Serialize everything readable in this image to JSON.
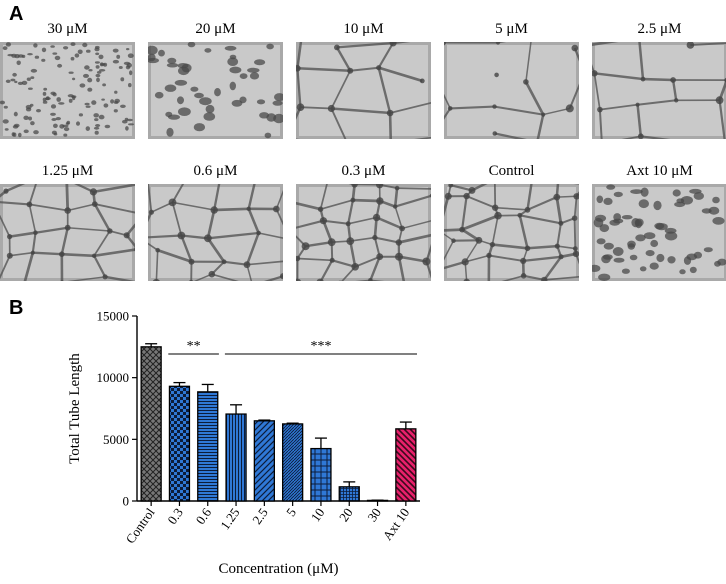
{
  "panels": {
    "a_label": "A",
    "b_label": "B"
  },
  "micrographs": [
    {
      "caption": "30 μM",
      "density": "dense-small-fragments"
    },
    {
      "caption": "20 μM",
      "density": "small-fragments"
    },
    {
      "caption": "10 μM",
      "density": "partial-network"
    },
    {
      "caption": "5 μM",
      "density": "partial-network"
    },
    {
      "caption": "2.5 μM",
      "density": "loose-network"
    },
    {
      "caption": "1.25 μM",
      "density": "network"
    },
    {
      "caption": "0.6 μM",
      "density": "network"
    },
    {
      "caption": "0.3 μM",
      "density": "dense-network"
    },
    {
      "caption": "Control",
      "density": "dense-network"
    },
    {
      "caption": "Axt 10 μM",
      "density": "fragments"
    }
  ],
  "colors": {
    "control_bar": "#777777",
    "treatment_bar": "#2f78d6",
    "axt_bar": "#e8206a",
    "tile_bg": "#c9c9c9",
    "tile_line": "#555555"
  },
  "chart_data": {
    "type": "bar",
    "xlabel": "Concentration (μM)",
    "ylabel": "Total Tube Length",
    "ylim": [
      0,
      15000
    ],
    "yticks": [
      "0",
      "5000",
      "10000",
      "15000"
    ],
    "categories": [
      "Control",
      "0.3",
      "0.6",
      "1.25",
      "2.5",
      "5",
      "10",
      "20",
      "30",
      "Axt 10"
    ],
    "values": [
      12500,
      9300,
      8850,
      7050,
      6500,
      6250,
      4250,
      1150,
      30,
      5850
    ],
    "errors": [
      250,
      300,
      600,
      750,
      60,
      60,
      850,
      400,
      40,
      550
    ],
    "patterns": [
      "crosshatch",
      "checker",
      "hlines",
      "vlines",
      "diag-right",
      "diag-right-fine",
      "grid",
      "grid-fine",
      "none",
      "diag-left"
    ],
    "significance": [
      {
        "label": "**",
        "from": "0.3",
        "to": "0.6"
      },
      {
        "label": "***",
        "from": "1.25",
        "to": "Axt 10"
      }
    ],
    "grid": false,
    "legend": "none"
  }
}
